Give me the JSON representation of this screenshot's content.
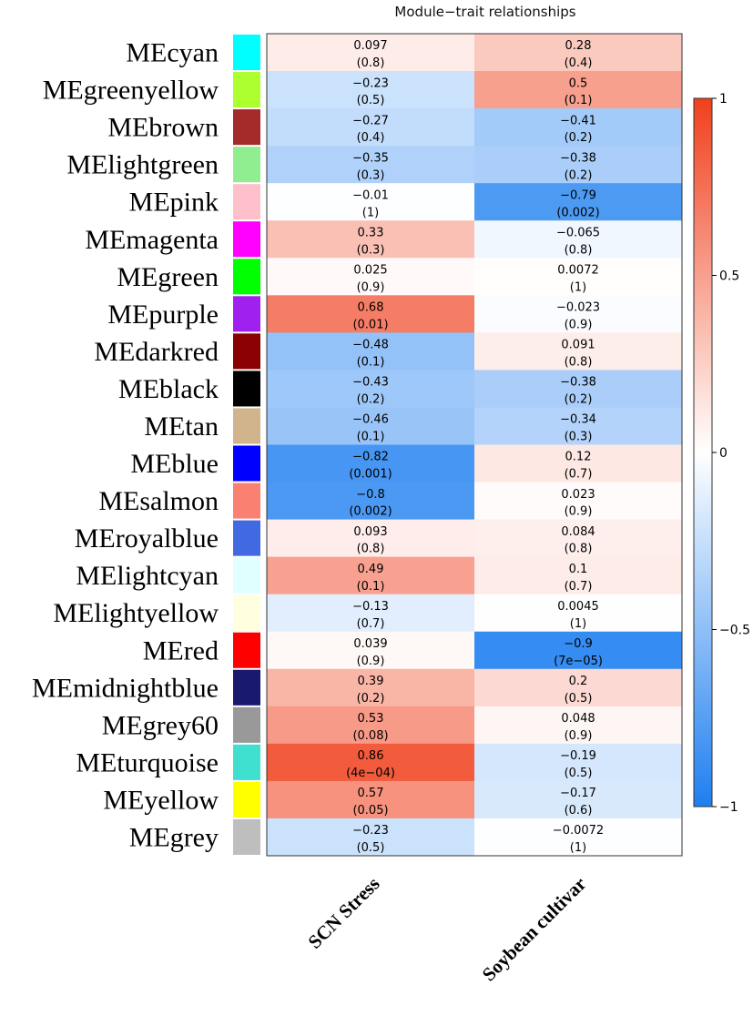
{
  "chart_data": {
    "type": "heatmap",
    "title": "Module−trait relationships",
    "columns": [
      "SCN Stress",
      "Soybean cultivar"
    ],
    "rows": [
      {
        "name": "MEcyan",
        "swatch": "#00ffff",
        "values": [
          0.097,
          0.28
        ],
        "labels": [
          "0.097",
          "0.28"
        ],
        "pvalues": [
          "(0.8)",
          "(0.4)"
        ]
      },
      {
        "name": "MEgreenyellow",
        "swatch": "#adff2f",
        "values": [
          -0.23,
          0.5
        ],
        "labels": [
          "−0.23",
          "0.5"
        ],
        "pvalues": [
          "(0.5)",
          "(0.1)"
        ]
      },
      {
        "name": "MEbrown",
        "swatch": "#a52a2a",
        "values": [
          -0.27,
          -0.41
        ],
        "labels": [
          "−0.27",
          "−0.41"
        ],
        "pvalues": [
          "(0.4)",
          "(0.2)"
        ]
      },
      {
        "name": "MElightgreen",
        "swatch": "#90ee90",
        "values": [
          -0.35,
          -0.38
        ],
        "labels": [
          "−0.35",
          "−0.38"
        ],
        "pvalues": [
          "(0.3)",
          "(0.2)"
        ]
      },
      {
        "name": "MEpink",
        "swatch": "#ffc0cb",
        "values": [
          -0.01,
          -0.79
        ],
        "labels": [
          "−0.01",
          "−0.79"
        ],
        "pvalues": [
          "(1)",
          "(0.002)"
        ]
      },
      {
        "name": "MEmagenta",
        "swatch": "#ff00ff",
        "values": [
          0.33,
          -0.065
        ],
        "labels": [
          "0.33",
          "−0.065"
        ],
        "pvalues": [
          "(0.3)",
          "(0.8)"
        ]
      },
      {
        "name": "MEgreen",
        "swatch": "#00ff00",
        "values": [
          0.025,
          0.0072
        ],
        "labels": [
          "0.025",
          "0.0072"
        ],
        "pvalues": [
          "(0.9)",
          "(1)"
        ]
      },
      {
        "name": "MEpurple",
        "swatch": "#a020f0",
        "values": [
          0.68,
          -0.023
        ],
        "labels": [
          "0.68",
          "−0.023"
        ],
        "pvalues": [
          "(0.01)",
          "(0.9)"
        ]
      },
      {
        "name": "MEdarkred",
        "swatch": "#8b0000",
        "values": [
          -0.48,
          0.091
        ],
        "labels": [
          "−0.48",
          "0.091"
        ],
        "pvalues": [
          "(0.1)",
          "(0.8)"
        ]
      },
      {
        "name": "MEblack",
        "swatch": "#000000",
        "values": [
          -0.43,
          -0.38
        ],
        "labels": [
          "−0.43",
          "−0.38"
        ],
        "pvalues": [
          "(0.2)",
          "(0.2)"
        ]
      },
      {
        "name": "MEtan",
        "swatch": "#d2b48c",
        "values": [
          -0.46,
          -0.34
        ],
        "labels": [
          "−0.46",
          "−0.34"
        ],
        "pvalues": [
          "(0.1)",
          "(0.3)"
        ]
      },
      {
        "name": "MEblue",
        "swatch": "#0000ff",
        "values": [
          -0.82,
          0.12
        ],
        "labels": [
          "−0.82",
          "0.12"
        ],
        "pvalues": [
          "(0.001)",
          "(0.7)"
        ]
      },
      {
        "name": "MEsalmon",
        "swatch": "#fa8072",
        "values": [
          -0.8,
          0.023
        ],
        "labels": [
          "−0.8",
          "0.023"
        ],
        "pvalues": [
          "(0.002)",
          "(0.9)"
        ]
      },
      {
        "name": "MEroyalblue",
        "swatch": "#4169e1",
        "values": [
          0.093,
          0.084
        ],
        "labels": [
          "0.093",
          "0.084"
        ],
        "pvalues": [
          "(0.8)",
          "(0.8)"
        ]
      },
      {
        "name": "MElightcyan",
        "swatch": "#e0ffff",
        "values": [
          0.49,
          0.1
        ],
        "labels": [
          "0.49",
          "0.1"
        ],
        "pvalues": [
          "(0.1)",
          "(0.7)"
        ]
      },
      {
        "name": "MElightyellow",
        "swatch": "#ffffe0",
        "values": [
          -0.13,
          0.0045
        ],
        "labels": [
          "−0.13",
          "0.0045"
        ],
        "pvalues": [
          "(0.7)",
          "(1)"
        ]
      },
      {
        "name": "MEred",
        "swatch": "#ff0000",
        "values": [
          0.039,
          -0.9
        ],
        "labels": [
          "0.039",
          "−0.9"
        ],
        "pvalues": [
          "(0.9)",
          "(7e−05)"
        ]
      },
      {
        "name": "MEmidnightblue",
        "swatch": "#191970",
        "values": [
          0.39,
          0.2
        ],
        "labels": [
          "0.39",
          "0.2"
        ],
        "pvalues": [
          "(0.2)",
          "(0.5)"
        ]
      },
      {
        "name": "MEgrey60",
        "swatch": "#999999",
        "values": [
          0.53,
          0.048
        ],
        "labels": [
          "0.53",
          "0.048"
        ],
        "pvalues": [
          "(0.08)",
          "(0.9)"
        ]
      },
      {
        "name": "MEturquoise",
        "swatch": "#40e0d0",
        "values": [
          0.86,
          -0.19
        ],
        "labels": [
          "0.86",
          "−0.19"
        ],
        "pvalues": [
          "(4e−04)",
          "(0.5)"
        ]
      },
      {
        "name": "MEyellow",
        "swatch": "#ffff00",
        "values": [
          0.57,
          -0.17
        ],
        "labels": [
          "0.57",
          "−0.17"
        ],
        "pvalues": [
          "(0.05)",
          "(0.6)"
        ]
      },
      {
        "name": "MEgrey",
        "swatch": "#bebebe",
        "values": [
          -0.23,
          -0.0072
        ],
        "labels": [
          "−0.23",
          "−0.0072"
        ],
        "pvalues": [
          "(0.5)",
          "(1)"
        ]
      }
    ],
    "colorbar": {
      "range": [
        -1,
        1
      ],
      "ticks": [
        1,
        0.5,
        0,
        -0.5,
        -1
      ],
      "tick_labels": [
        "1",
        "0.5",
        "0",
        "−0.5",
        "−1"
      ],
      "colors": {
        "low": "#1e7ff0",
        "mid": "#ffffff",
        "high": "#f0401c"
      }
    }
  }
}
